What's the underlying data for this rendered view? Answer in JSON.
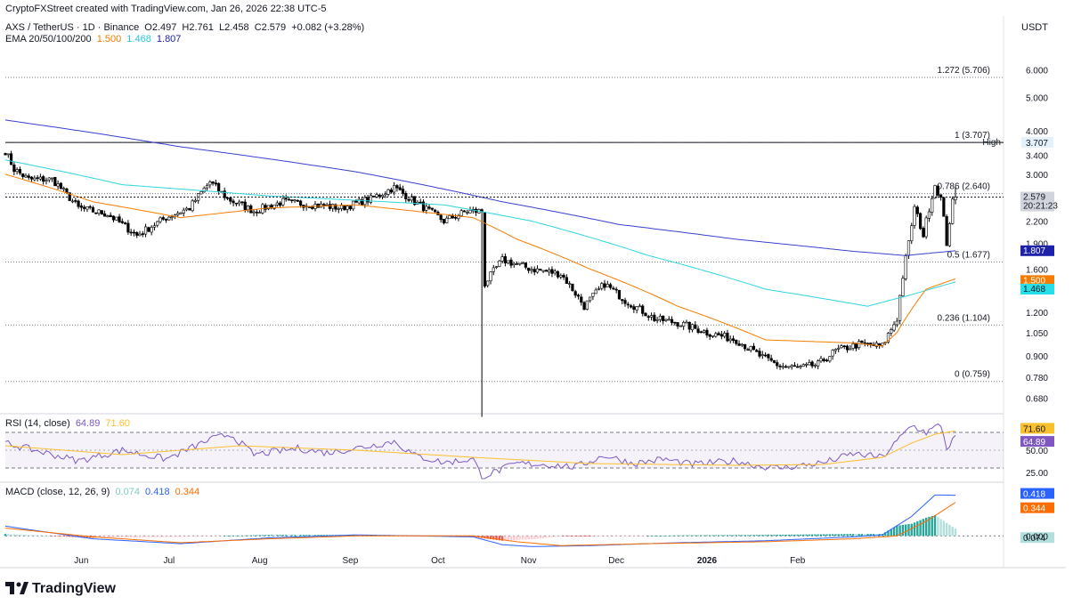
{
  "header": {
    "credit": "CryptoFXStreet created with TradingView.com, Jan 26, 2026 22:38 UTC-5",
    "symbol_line": "AXS / TetherUS · 1D · Binance",
    "ohlc": {
      "o": "O2.497",
      "h": "H2.761",
      "l": "L2.458",
      "c": "C2.579",
      "chg": "+0.082 (+3.28%)"
    },
    "ema_label": "EMA 20/50/100/200",
    "ema_values": [
      {
        "value": "1.500",
        "color": "#f57c00"
      },
      {
        "value": "1.468",
        "color": "#26c6da"
      },
      {
        "value": "1.807",
        "color": "#1e22aa"
      }
    ],
    "unit": "USDT"
  },
  "rsi_header": {
    "label": "RSI (14, close)",
    "value": "64.89",
    "ma": "71.60"
  },
  "macd_header": {
    "label": "MACD (close, 12, 26, 9)",
    "hist": "0.074",
    "macd": "0.418",
    "signal": "0.344"
  },
  "brand": {
    "logo": "TradingView"
  },
  "colors": {
    "up": "#ffffff",
    "down": "#000000",
    "ema20": "#f57c00",
    "ema50": "#26c6da",
    "ema100": "#f57c00",
    "ema200": "#3b3fcf",
    "rsi": "#7e57c2",
    "rsi_ma": "#fbc02d",
    "macd": "#2962ff",
    "signal": "#ff6d00",
    "hist_pos": "#26a69a",
    "hist_neg": "#ef5350"
  },
  "chart_data": [
    {
      "type": "candlestick",
      "title": "AXS / TetherUS · 1D · Binance",
      "yscale": "log",
      "ylim": [
        0.62,
        7.1
      ],
      "y_ticks": [
        "6.000",
        "5.000",
        "4.000",
        "3.400",
        "3.000",
        "2.600",
        "2.200",
        "1.900",
        "1.600",
        "1.200",
        "1.050",
        "0.900",
        "0.780",
        "0.680"
      ],
      "x_ticks": [
        "Jun",
        "Jul",
        "Aug",
        "Sep",
        "Oct",
        "Nov",
        "Dec",
        "2026",
        "Feb"
      ],
      "fib_levels": [
        {
          "label": "1.272 (5.706)",
          "value": 5.706
        },
        {
          "label": "1 (3.707)",
          "value": 3.707
        },
        {
          "label": "0.786 (2.640)",
          "value": 2.64
        },
        {
          "label": "0.5 (1.677)",
          "value": 1.677
        },
        {
          "label": "0.236 (1.104)",
          "value": 1.104
        },
        {
          "label": "0 (0.759)",
          "value": 0.759
        }
      ],
      "high_marker": {
        "label": "High",
        "value": "3.707"
      },
      "price_labels": [
        {
          "value": "2.579",
          "sub": "20:21:23",
          "bg": "#d1d4dc",
          "fg": "#131722"
        },
        {
          "value": "1.807",
          "bg": "#1e22aa",
          "fg": "#ffffff"
        },
        {
          "value": "1.500",
          "bg": "#f57c00",
          "fg": "#ffffff"
        },
        {
          "value": "1.468",
          "bg": "#26e0e8",
          "fg": "#131722"
        }
      ],
      "price_path_anchors": [
        [
          0,
          3.5
        ],
        [
          3,
          3.1
        ],
        [
          8,
          2.9
        ],
        [
          16,
          2.9
        ],
        [
          25,
          2.4
        ],
        [
          35,
          2.3
        ],
        [
          45,
          2.0
        ],
        [
          55,
          2.25
        ],
        [
          63,
          2.4
        ],
        [
          70,
          2.85
        ],
        [
          76,
          2.55
        ],
        [
          85,
          2.35
        ],
        [
          95,
          2.5
        ],
        [
          105,
          2.45
        ],
        [
          115,
          2.4
        ],
        [
          125,
          2.55
        ],
        [
          133,
          2.75
        ],
        [
          140,
          2.5
        ],
        [
          150,
          2.2
        ],
        [
          158,
          2.35
        ],
        [
          163,
          2.35
        ],
        [
          164,
          1.45
        ],
        [
          170,
          1.7
        ],
        [
          180,
          1.6
        ],
        [
          190,
          1.55
        ],
        [
          198,
          1.25
        ],
        [
          205,
          1.45
        ],
        [
          212,
          1.3
        ],
        [
          222,
          1.15
        ],
        [
          230,
          1.12
        ],
        [
          240,
          1.05
        ],
        [
          250,
          1.0
        ],
        [
          258,
          0.9
        ],
        [
          265,
          0.84
        ],
        [
          272,
          0.83
        ],
        [
          278,
          0.85
        ],
        [
          284,
          0.93
        ],
        [
          292,
          0.97
        ],
        [
          300,
          0.96
        ],
        [
          305,
          1.15
        ],
        [
          309,
          1.9
        ],
        [
          311,
          2.4
        ],
        [
          314,
          2.0
        ],
        [
          318,
          2.8
        ],
        [
          320,
          2.55
        ],
        [
          322,
          1.9
        ],
        [
          324,
          2.49
        ],
        [
          325,
          2.579
        ]
      ],
      "ema_anchors": {
        "ema20": [
          [
            0,
            3.0
          ],
          [
            30,
            2.5
          ],
          [
            60,
            2.25
          ],
          [
            90,
            2.4
          ],
          [
            120,
            2.45
          ],
          [
            160,
            2.25
          ],
          [
            175,
            1.95
          ],
          [
            200,
            1.6
          ],
          [
            230,
            1.25
          ],
          [
            260,
            1.0
          ],
          [
            290,
            0.98
          ],
          [
            300,
            0.96
          ],
          [
            305,
            1.05
          ],
          [
            315,
            1.4
          ],
          [
            325,
            1.5
          ]
        ],
        "ema50": [
          [
            0,
            3.3
          ],
          [
            40,
            2.8
          ],
          [
            90,
            2.6
          ],
          [
            150,
            2.45
          ],
          [
            180,
            2.2
          ],
          [
            220,
            1.75
          ],
          [
            260,
            1.4
          ],
          [
            295,
            1.25
          ],
          [
            310,
            1.35
          ],
          [
            325,
            1.468
          ]
        ],
        "ema200": [
          [
            0,
            4.3
          ],
          [
            60,
            3.6
          ],
          [
            120,
            3.05
          ],
          [
            170,
            2.5
          ],
          [
            210,
            2.15
          ],
          [
            250,
            1.95
          ],
          [
            290,
            1.8
          ],
          [
            308,
            1.75
          ],
          [
            325,
            1.807
          ]
        ]
      },
      "n_bars": 326,
      "first_date": "2025-05-06"
    },
    {
      "type": "line",
      "title": "RSI (14, close)",
      "y_ticks": [
        "71.60",
        "64.89",
        "50.00",
        "25.00"
      ],
      "bands": [
        70,
        30
      ],
      "ylim": [
        20,
        80
      ],
      "rsi_anchors": [
        [
          0,
          58
        ],
        [
          10,
          50
        ],
        [
          25,
          38
        ],
        [
          40,
          50
        ],
        [
          55,
          40
        ],
        [
          70,
          62
        ],
        [
          77,
          68
        ],
        [
          85,
          45
        ],
        [
          100,
          52
        ],
        [
          110,
          47
        ],
        [
          125,
          55
        ],
        [
          133,
          60
        ],
        [
          140,
          44
        ],
        [
          150,
          36
        ],
        [
          160,
          40
        ],
        [
          163,
          20
        ],
        [
          175,
          35
        ],
        [
          185,
          34
        ],
        [
          195,
          31
        ],
        [
          205,
          44
        ],
        [
          215,
          35
        ],
        [
          225,
          40
        ],
        [
          235,
          34
        ],
        [
          250,
          38
        ],
        [
          258,
          32
        ],
        [
          265,
          30
        ],
        [
          280,
          36
        ],
        [
          290,
          46
        ],
        [
          300,
          42
        ],
        [
          305,
          60
        ],
        [
          310,
          78
        ],
        [
          315,
          70
        ],
        [
          320,
          79
        ],
        [
          322,
          52
        ],
        [
          325,
          64.89
        ]
      ],
      "ma_anchors": [
        [
          0,
          55
        ],
        [
          40,
          45
        ],
        [
          80,
          55
        ],
        [
          120,
          50
        ],
        [
          160,
          42
        ],
        [
          200,
          35
        ],
        [
          250,
          33
        ],
        [
          280,
          34
        ],
        [
          300,
          42
        ],
        [
          310,
          58
        ],
        [
          318,
          68
        ],
        [
          325,
          71.6
        ]
      ],
      "price_labels": [
        {
          "value": "71.60",
          "bg": "#fbc02d",
          "fg": "#131722"
        },
        {
          "value": "64.89",
          "bg": "#7e57c2",
          "fg": "#ffffff"
        }
      ]
    },
    {
      "type": "bar",
      "title": "MACD (close, 12, 26, 9)",
      "y_ticks": [
        "0.000"
      ],
      "ylim": [
        -0.18,
        0.46
      ],
      "macd_anchors": [
        [
          0,
          0.1
        ],
        [
          30,
          -0.03
        ],
        [
          60,
          -0.08
        ],
        [
          90,
          -0.02
        ],
        [
          120,
          0.01
        ],
        [
          160,
          -0.01
        ],
        [
          170,
          -0.09
        ],
        [
          180,
          -0.11
        ],
        [
          200,
          -0.1
        ],
        [
          230,
          -0.07
        ],
        [
          260,
          -0.05
        ],
        [
          290,
          -0.01
        ],
        [
          300,
          0.01
        ],
        [
          310,
          0.2
        ],
        [
          318,
          0.42
        ],
        [
          325,
          0.418
        ]
      ],
      "signal_anchors": [
        [
          0,
          0.08
        ],
        [
          30,
          -0.01
        ],
        [
          60,
          -0.07
        ],
        [
          90,
          -0.03
        ],
        [
          120,
          0.0
        ],
        [
          160,
          -0.0
        ],
        [
          175,
          -0.06
        ],
        [
          190,
          -0.1
        ],
        [
          220,
          -0.08
        ],
        [
          260,
          -0.06
        ],
        [
          290,
          -0.03
        ],
        [
          305,
          0.0
        ],
        [
          315,
          0.15
        ],
        [
          325,
          0.344
        ]
      ],
      "price_labels": [
        {
          "value": "0.418",
          "bg": "#2962ff",
          "fg": "#ffffff"
        },
        {
          "value": "0.344",
          "bg": "#ff6d00",
          "fg": "#ffffff"
        },
        {
          "value": "0.074",
          "bg": "#b2dfdb",
          "fg": "#131722"
        }
      ]
    }
  ]
}
